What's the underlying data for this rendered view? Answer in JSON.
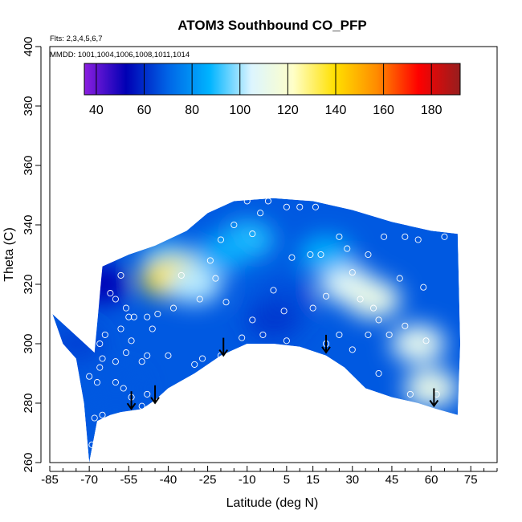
{
  "chart_data": {
    "type": "heatmap",
    "title": "ATOM3 Southbound CO_PFP",
    "subtitle_flights": "Flts: 2,3,4,5,6,7",
    "subtitle_dates": "MMDD: 1001,1004,1006,1008,1011,1014",
    "xlabel": "Latitude (deg N)",
    "ylabel": "Theta (C)",
    "xlim": [
      -85,
      85
    ],
    "ylim": [
      260,
      400
    ],
    "x_ticks": [
      -85,
      -70,
      -55,
      -40,
      -25,
      -10,
      5,
      15,
      30,
      45,
      60,
      75
    ],
    "y_ticks": [
      260,
      280,
      300,
      320,
      340,
      360,
      380,
      400
    ],
    "colorbar": {
      "range": [
        35,
        192
      ],
      "ticks": [
        40,
        60,
        80,
        100,
        120,
        140,
        160,
        180
      ],
      "colors": [
        "#8c1ee0",
        "#0000b4",
        "#0064e6",
        "#00b4ff",
        "#dcf5ff",
        "#ffffc8",
        "#ffe000",
        "#ff8c00",
        "#ff0000",
        "#961e1e"
      ]
    },
    "field_boundary": {
      "upper": [
        [
          -68,
          297
        ],
        [
          -65,
          326
        ],
        [
          -55,
          330
        ],
        [
          -45,
          333
        ],
        [
          -33,
          338
        ],
        [
          -25,
          344
        ],
        [
          -15,
          348
        ],
        [
          0,
          349
        ],
        [
          15,
          348
        ],
        [
          30,
          345
        ],
        [
          45,
          341
        ],
        [
          60,
          338
        ],
        [
          70,
          337
        ],
        [
          71,
          300
        ]
      ],
      "lower": [
        [
          -70,
          260
        ],
        [
          -67,
          274
        ],
        [
          -62,
          276
        ],
        [
          -58,
          277
        ],
        [
          -50,
          278
        ],
        [
          -45,
          281
        ],
        [
          -40,
          285
        ],
        [
          -30,
          290
        ],
        [
          -20,
          296
        ],
        [
          -10,
          300
        ],
        [
          0,
          300
        ],
        [
          10,
          299
        ],
        [
          20,
          296
        ],
        [
          27,
          292
        ],
        [
          35,
          285
        ],
        [
          45,
          282
        ],
        [
          55,
          280
        ],
        [
          62,
          278
        ],
        [
          70,
          276
        ],
        [
          71,
          300
        ]
      ],
      "west_edge": [
        [
          -84,
          310
        ],
        [
          -80,
          300
        ],
        [
          -75,
          295
        ],
        [
          -72,
          280
        ],
        [
          -70,
          260
        ]
      ]
    },
    "regions": [
      {
        "x": 28,
        "y": 320,
        "value": 108
      },
      {
        "x": 38,
        "y": 315,
        "value": 112
      },
      {
        "x": 55,
        "y": 300,
        "value": 110
      },
      {
        "x": 60,
        "y": 285,
        "value": 112
      },
      {
        "x": -10,
        "y": 335,
        "value": 90
      },
      {
        "x": 20,
        "y": 330,
        "value": 86
      },
      {
        "x": -40,
        "y": 328,
        "value": 92
      },
      {
        "x": -35,
        "y": 323,
        "value": 128
      },
      {
        "x": -40,
        "y": 322,
        "value": 138
      },
      {
        "x": -30,
        "y": 320,
        "value": 102
      },
      {
        "x": -20,
        "y": 330,
        "value": 85
      },
      {
        "x": 5,
        "y": 315,
        "value": 66
      },
      {
        "x": 0,
        "y": 308,
        "value": 62
      },
      {
        "x": -65,
        "y": 320,
        "value": 52
      },
      {
        "x": -75,
        "y": 300,
        "value": 64
      },
      {
        "x": -60,
        "y": 285,
        "value": 68
      }
    ],
    "samples": [
      {
        "lat": -69,
        "theta": 266
      },
      {
        "lat": -68,
        "theta": 275
      },
      {
        "lat": -65,
        "theta": 276
      },
      {
        "lat": -70,
        "theta": 289
      },
      {
        "lat": -67,
        "theta": 287
      },
      {
        "lat": -66,
        "theta": 292
      },
      {
        "lat": -65,
        "theta": 295
      },
      {
        "lat": -66,
        "theta": 300
      },
      {
        "lat": -64,
        "theta": 303
      },
      {
        "lat": -60,
        "theta": 287
      },
      {
        "lat": -57,
        "theta": 285
      },
      {
        "lat": -60,
        "theta": 294
      },
      {
        "lat": -56,
        "theta": 297
      },
      {
        "lat": -54,
        "theta": 301
      },
      {
        "lat": -58,
        "theta": 305
      },
      {
        "lat": -55,
        "theta": 309
      },
      {
        "lat": -53,
        "theta": 309
      },
      {
        "lat": -56,
        "theta": 312
      },
      {
        "lat": -50,
        "theta": 294
      },
      {
        "lat": -48,
        "theta": 296
      },
      {
        "lat": -46,
        "theta": 305
      },
      {
        "lat": -48,
        "theta": 309
      },
      {
        "lat": -44,
        "theta": 310
      },
      {
        "lat": -62,
        "theta": 317
      },
      {
        "lat": -58,
        "theta": 323
      },
      {
        "lat": -64,
        "theta": 328
      },
      {
        "lat": -60,
        "theta": 315
      },
      {
        "lat": -40,
        "theta": 296
      },
      {
        "lat": -38,
        "theta": 312
      },
      {
        "lat": -35,
        "theta": 323
      },
      {
        "lat": -54,
        "theta": 282
      },
      {
        "lat": -48,
        "theta": 283
      },
      {
        "lat": -50,
        "theta": 279
      },
      {
        "lat": -30,
        "theta": 293
      },
      {
        "lat": -27,
        "theta": 295
      },
      {
        "lat": -20,
        "theta": 296
      },
      {
        "lat": -28,
        "theta": 315
      },
      {
        "lat": -22,
        "theta": 322
      },
      {
        "lat": -18,
        "theta": 314
      },
      {
        "lat": -24,
        "theta": 328
      },
      {
        "lat": -20,
        "theta": 335
      },
      {
        "lat": -15,
        "theta": 340
      },
      {
        "lat": -8,
        "theta": 337
      },
      {
        "lat": -10,
        "theta": 348
      },
      {
        "lat": -5,
        "theta": 344
      },
      {
        "lat": -2,
        "theta": 348
      },
      {
        "lat": 5,
        "theta": 346
      },
      {
        "lat": 10,
        "theta": 346
      },
      {
        "lat": 16,
        "theta": 346
      },
      {
        "lat": 25,
        "theta": 336
      },
      {
        "lat": 28,
        "theta": 332
      },
      {
        "lat": 42,
        "theta": 336
      },
      {
        "lat": 50,
        "theta": 336
      },
      {
        "lat": 55,
        "theta": 335
      },
      {
        "lat": -12,
        "theta": 302
      },
      {
        "lat": -8,
        "theta": 308
      },
      {
        "lat": -4,
        "theta": 303
      },
      {
        "lat": 0,
        "theta": 318
      },
      {
        "lat": 4,
        "theta": 311
      },
      {
        "lat": 5,
        "theta": 301
      },
      {
        "lat": 7,
        "theta": 329
      },
      {
        "lat": 14,
        "theta": 330
      },
      {
        "lat": 15,
        "theta": 312
      },
      {
        "lat": 18,
        "theta": 330
      },
      {
        "lat": 20,
        "theta": 316
      },
      {
        "lat": 20,
        "theta": 300
      },
      {
        "lat": 25,
        "theta": 303
      },
      {
        "lat": 30,
        "theta": 298
      },
      {
        "lat": 30,
        "theta": 324
      },
      {
        "lat": 33,
        "theta": 315
      },
      {
        "lat": 36,
        "theta": 303
      },
      {
        "lat": 36,
        "theta": 330
      },
      {
        "lat": 38,
        "theta": 312
      },
      {
        "lat": 40,
        "theta": 308
      },
      {
        "lat": 44,
        "theta": 303
      },
      {
        "lat": 48,
        "theta": 322
      },
      {
        "lat": 50,
        "theta": 306
      },
      {
        "lat": 57,
        "theta": 319
      },
      {
        "lat": 58,
        "theta": 301
      },
      {
        "lat": 40,
        "theta": 290
      },
      {
        "lat": 52,
        "theta": 283
      },
      {
        "lat": 65,
        "theta": 336
      },
      {
        "lat": 62,
        "theta": 283
      }
    ],
    "arrows": [
      {
        "lat": -54,
        "theta": 284
      },
      {
        "lat": -45,
        "theta": 286
      },
      {
        "lat": -19,
        "theta": 302
      },
      {
        "lat": 20,
        "theta": 303
      },
      {
        "lat": 61,
        "theta": 285
      }
    ]
  }
}
